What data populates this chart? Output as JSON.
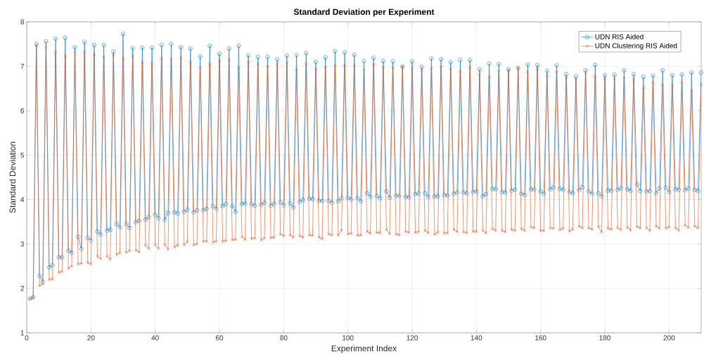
{
  "chart_data": {
    "type": "line",
    "title": "Standard Deviation per Experiment",
    "xlabel": "Experiment Index",
    "ylabel": "Standard Deviation",
    "x": [
      1,
      2,
      3,
      4,
      5,
      6,
      7,
      8,
      9,
      10,
      11,
      12,
      13,
      14,
      15,
      16,
      17,
      18,
      19,
      20,
      21,
      22,
      23,
      24,
      25,
      26,
      27,
      28,
      29,
      30,
      31,
      32,
      33,
      34,
      35,
      36,
      37,
      38,
      39,
      40,
      41,
      42,
      43,
      44,
      45,
      46,
      47,
      48,
      49,
      50,
      51,
      52,
      53,
      54,
      55,
      56,
      57,
      58,
      59,
      60,
      61,
      62,
      63,
      64,
      65,
      66,
      67,
      68,
      69,
      70,
      71,
      72,
      73,
      74,
      75,
      76,
      77,
      78,
      79,
      80,
      81,
      82,
      83,
      84,
      85,
      86,
      87,
      88,
      89,
      90,
      91,
      92,
      93,
      94,
      95,
      96,
      97,
      98,
      99,
      100,
      101,
      102,
      103,
      104,
      105,
      106,
      107,
      108,
      109,
      110,
      111,
      112,
      113,
      114,
      115,
      116,
      117,
      118,
      119,
      120,
      121,
      122,
      123,
      124,
      125,
      126,
      127,
      128,
      129,
      130,
      131,
      132,
      133,
      134,
      135,
      136,
      137,
      138,
      139,
      140,
      141,
      142,
      143,
      144,
      145,
      146,
      147,
      148,
      149,
      150,
      151,
      152,
      153,
      154,
      155,
      156,
      157,
      158,
      159,
      160,
      161,
      162,
      163,
      164,
      165,
      166,
      167,
      168,
      169,
      170,
      171,
      172,
      173,
      174,
      175,
      176,
      177,
      178,
      179,
      180,
      181,
      182,
      183,
      184,
      185,
      186,
      187,
      188,
      189,
      190,
      191,
      192,
      193,
      194,
      195,
      196,
      197,
      198,
      199,
      200,
      201,
      202,
      203,
      204,
      205,
      206,
      207,
      208,
      209,
      210
    ],
    "series": [
      {
        "name": "UDN RIS Aided",
        "color": "#0072bd",
        "marker": "circle",
        "values": [
          1.77,
          1.8,
          7.5,
          2.28,
          2.15,
          7.56,
          2.47,
          2.52,
          7.62,
          2.7,
          2.7,
          7.64,
          2.85,
          2.8,
          7.43,
          3.16,
          2.89,
          7.55,
          3.14,
          3.08,
          7.48,
          3.28,
          3.21,
          7.48,
          3.3,
          3.32,
          7.33,
          3.45,
          3.37,
          7.73,
          3.45,
          3.36,
          7.41,
          3.49,
          3.52,
          7.42,
          3.55,
          3.6,
          7.42,
          3.66,
          3.58,
          7.48,
          3.54,
          3.7,
          7.5,
          3.71,
          3.69,
          7.43,
          3.72,
          3.77,
          7.4,
          3.71,
          3.76,
          7.22,
          3.76,
          3.79,
          7.46,
          3.85,
          3.79,
          7.28,
          3.85,
          3.9,
          7.4,
          3.85,
          3.72,
          7.46,
          3.9,
          3.91,
          7.24,
          3.9,
          3.86,
          7.21,
          3.88,
          3.93,
          7.21,
          3.86,
          3.91,
          7.15,
          3.94,
          3.87,
          7.24,
          3.91,
          3.82,
          7.25,
          3.95,
          3.99,
          7.3,
          4.02,
          4.01,
          7.1,
          3.97,
          3.97,
          7.2,
          3.97,
          3.93,
          7.34,
          3.96,
          4.03,
          7.31,
          4.04,
          4.0,
          7.26,
          4.03,
          3.96,
          7.12,
          4.14,
          4.06,
          7.19,
          4.08,
          4.03,
          7.12,
          4.18,
          4.04,
          7.11,
          4.08,
          4.08,
          6.99,
          4.06,
          4.05,
          7.11,
          4.12,
          4.14,
          6.99,
          4.14,
          4.06,
          7.18,
          4.07,
          4.07,
          7.16,
          4.1,
          4.09,
          7.09,
          4.13,
          4.16,
          7.14,
          4.16,
          4.14,
          7.14,
          4.17,
          4.18,
          6.93,
          4.07,
          4.12,
          7.06,
          4.24,
          4.23,
          7.05,
          4.17,
          4.16,
          6.93,
          4.2,
          4.22,
          6.96,
          4.13,
          4.1,
          7.04,
          4.23,
          4.22,
          7.03,
          4.18,
          4.13,
          6.9,
          4.23,
          4.27,
          7.02,
          4.24,
          4.22,
          6.82,
          4.17,
          4.14,
          6.77,
          4.21,
          4.28,
          6.91,
          4.18,
          4.13,
          7.03,
          4.14,
          4.07,
          6.8,
          4.2,
          4.2,
          6.81,
          4.22,
          4.25,
          6.91,
          4.23,
          4.2,
          6.82,
          4.34,
          4.19,
          6.76,
          4.18,
          4.19,
          6.79,
          4.14,
          4.25,
          6.91,
          4.27,
          4.17,
          6.8,
          4.23,
          4.22,
          6.82,
          4.21,
          4.25,
          6.86,
          4.22,
          4.19,
          6.86
        ]
      },
      {
        "name": "UDN Clustering RIS Aided",
        "color": "#d95319",
        "marker": "cross",
        "values": [
          1.76,
          1.79,
          7.47,
          2.06,
          2.1,
          7.43,
          2.2,
          2.21,
          7.32,
          2.36,
          2.38,
          7.24,
          2.45,
          2.5,
          7.32,
          2.55,
          2.56,
          7.32,
          2.58,
          2.55,
          7.28,
          2.72,
          2.67,
          7.21,
          2.72,
          2.66,
          7.25,
          2.76,
          2.8,
          7.18,
          2.81,
          2.85,
          7.23,
          2.86,
          2.82,
          7.09,
          2.97,
          2.9,
          7.07,
          2.98,
          2.9,
          7.18,
          2.98,
          2.88,
          7.16,
          2.93,
          2.97,
          7.19,
          2.98,
          3.05,
          7.1,
          2.98,
          3.0,
          6.97,
          3.06,
          3.06,
          7.05,
          3.04,
          3.06,
          7.13,
          3.06,
          3.07,
          7.16,
          3.09,
          3.1,
          6.97,
          3.16,
          3.1,
          7.1,
          3.12,
          3.13,
          7.06,
          3.09,
          3.13,
          7.0,
          3.14,
          3.15,
          7.05,
          3.22,
          3.18,
          7.08,
          3.2,
          3.15,
          6.93,
          3.18,
          3.15,
          7.06,
          3.2,
          3.19,
          6.94,
          3.15,
          3.12,
          6.98,
          3.22,
          3.2,
          7.02,
          3.2,
          3.31,
          7.02,
          3.22,
          3.24,
          7.03,
          3.19,
          3.2,
          6.92,
          3.28,
          3.24,
          7.04,
          3.25,
          3.26,
          6.98,
          3.32,
          3.23,
          6.96,
          3.22,
          3.2,
          7.0,
          3.28,
          3.26,
          6.96,
          3.26,
          3.27,
          6.91,
          3.3,
          3.25,
          6.95,
          3.22,
          3.26,
          6.99,
          3.24,
          3.25,
          6.95,
          3.32,
          3.28,
          6.89,
          3.27,
          3.25,
          6.97,
          3.28,
          3.28,
          6.82,
          3.3,
          3.25,
          6.76,
          3.34,
          3.3,
          6.9,
          3.3,
          3.27,
          6.92,
          3.32,
          3.3,
          6.97,
          3.34,
          3.3,
          6.88,
          3.38,
          3.36,
          6.95,
          3.3,
          3.3,
          6.8,
          3.36,
          3.35,
          6.88,
          3.32,
          3.35,
          6.75,
          3.29,
          3.33,
          6.71,
          3.4,
          3.36,
          6.85,
          3.36,
          3.33,
          6.77,
          3.39,
          3.27,
          6.72,
          3.35,
          3.33,
          6.71,
          3.36,
          3.32,
          6.74,
          3.37,
          3.31,
          6.71,
          3.39,
          3.36,
          6.52,
          3.36,
          3.3,
          6.64,
          3.4,
          3.35,
          6.59,
          3.36,
          3.38,
          6.58,
          3.36,
          3.31,
          6.64,
          3.42,
          3.37,
          6.46,
          3.4,
          3.36,
          6.59
        ]
      }
    ],
    "xlim": [
      0,
      210
    ],
    "ylim": [
      1,
      8
    ],
    "xticks": [
      0,
      20,
      40,
      60,
      80,
      100,
      120,
      140,
      160,
      180,
      200
    ],
    "yticks": [
      1,
      2,
      3,
      4,
      5,
      6,
      7,
      8
    ],
    "grid": true,
    "legend": "top right",
    "line_style": "solid"
  }
}
